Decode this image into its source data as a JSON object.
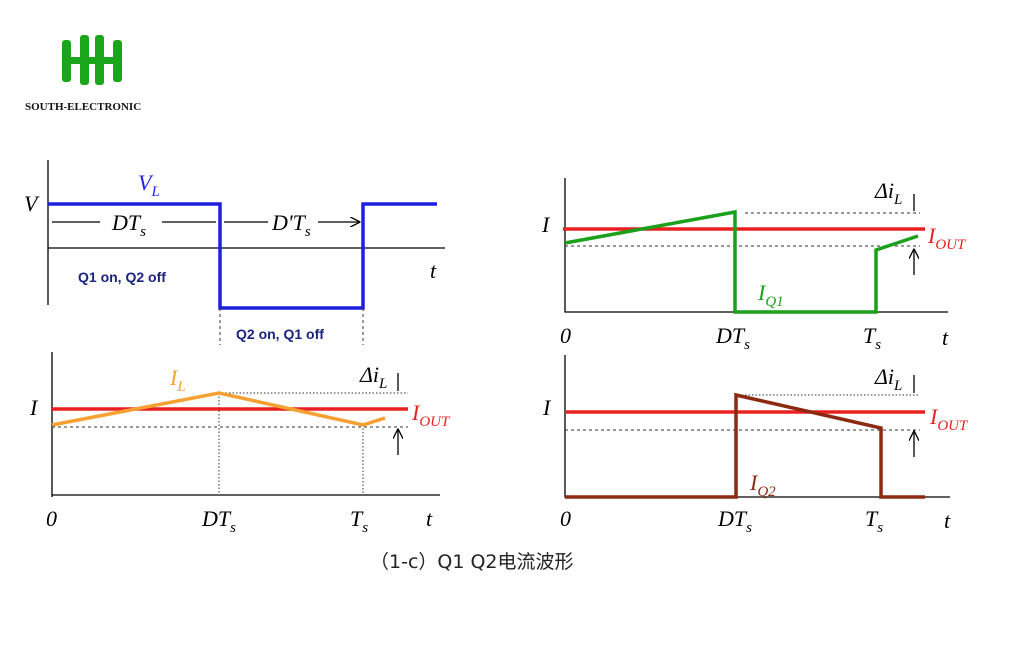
{
  "logo": {
    "text": "SOUTH-ELECTRONIC"
  },
  "panels": [
    {
      "y_label": "V",
      "signal": {
        "main": "V",
        "sub": "L"
      },
      "x_label": "t",
      "intervals": [
        {
          "main": "DT",
          "sub": "s"
        },
        {
          "main": "D'T",
          "sub": "s"
        }
      ],
      "states": [
        "Q1 on, Q2 off",
        "Q2 on, Q1 off"
      ]
    },
    {
      "y_label": "I",
      "origin": "0",
      "x_ticks": [
        {
          "main": "DT",
          "sub": "s"
        },
        {
          "main": "T",
          "sub": "s"
        }
      ],
      "x_label": "t",
      "signal": {
        "main": "I",
        "sub": "Q1"
      },
      "average": {
        "main": "I",
        "sub": "OUT"
      },
      "ripple": {
        "main": "Δi",
        "sub": "L"
      }
    },
    {
      "y_label": "I",
      "origin": "0",
      "x_ticks": [
        {
          "main": "DT",
          "sub": "s"
        },
        {
          "main": "T",
          "sub": "s"
        }
      ],
      "x_label": "t",
      "signal": {
        "main": "I",
        "sub": "L"
      },
      "average": {
        "main": "I",
        "sub": "OUT"
      },
      "ripple": {
        "main": "Δi",
        "sub": "L"
      }
    },
    {
      "y_label": "I",
      "origin": "0",
      "x_ticks": [
        {
          "main": "DT",
          "sub": "s"
        },
        {
          "main": "T",
          "sub": "s"
        }
      ],
      "x_label": "t",
      "signal": {
        "main": "I",
        "sub": "Q2"
      },
      "average": {
        "main": "I",
        "sub": "OUT"
      },
      "ripple": {
        "main": "Δi",
        "sub": "L"
      }
    }
  ],
  "caption": "（1-c）Q1 Q2电流波形"
}
